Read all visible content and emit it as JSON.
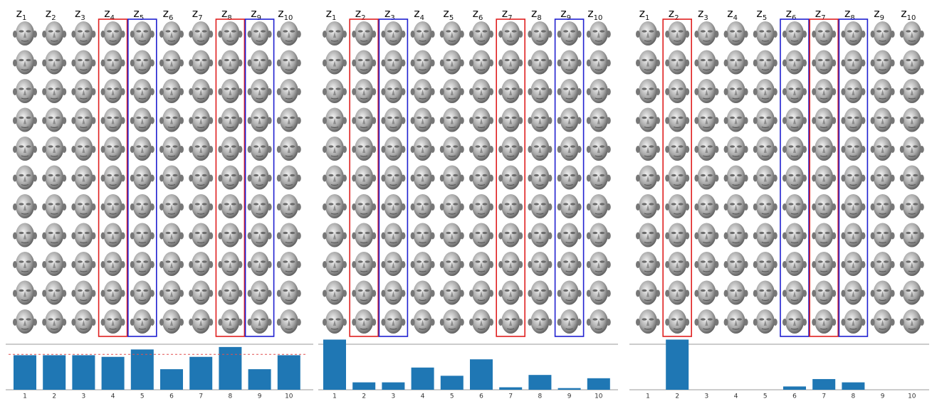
{
  "chart_data": [
    {
      "type": "bar",
      "latent_symbol": "z",
      "latent_indices": [
        "1",
        "2",
        "3",
        "4",
        "5",
        "6",
        "7",
        "8",
        "9",
        "10"
      ],
      "boxes": [
        {
          "column": 4,
          "color": "#e02020"
        },
        {
          "column": 5,
          "color": "#2020d0"
        },
        {
          "column": 8,
          "color": "#e02020"
        },
        {
          "column": 9,
          "color": "#2020d0"
        }
      ],
      "categories": [
        "1",
        "2",
        "3",
        "4",
        "5",
        "6",
        "7",
        "8",
        "9",
        "10"
      ],
      "values": [
        42,
        42,
        42,
        40,
        49,
        25,
        40,
        52,
        25,
        42
      ],
      "color": "#1f77b4",
      "ylim": [
        0,
        64
      ],
      "reference_line": 43,
      "reference_color": "#e05050"
    },
    {
      "type": "bar",
      "latent_symbol": "z",
      "latent_indices": [
        "1",
        "2",
        "3",
        "4",
        "5",
        "6",
        "7",
        "8",
        "9",
        "10"
      ],
      "boxes": [
        {
          "column": 2,
          "color": "#e02020"
        },
        {
          "column": 3,
          "color": "#2020d0"
        },
        {
          "column": 7,
          "color": "#e02020"
        },
        {
          "column": 9,
          "color": "#2020d0"
        }
      ],
      "categories": [
        "1",
        "2",
        "3",
        "4",
        "5",
        "6",
        "7",
        "8",
        "9",
        "10"
      ],
      "values": [
        61,
        9,
        9,
        27,
        17,
        37,
        3,
        18,
        2,
        14
      ],
      "color": "#1f77b4",
      "ylim": [
        0,
        64
      ]
    },
    {
      "type": "bar",
      "latent_symbol": "z",
      "latent_indices": [
        "1",
        "2",
        "3",
        "4",
        "5",
        "6",
        "7",
        "8",
        "9",
        "10"
      ],
      "boxes": [
        {
          "column": 2,
          "color": "#e02020"
        },
        {
          "column": 6,
          "color": "#2020d0"
        },
        {
          "column": 7,
          "color": "#e02020"
        },
        {
          "column": 8,
          "color": "#2020d0"
        }
      ],
      "categories": [
        "1",
        "2",
        "3",
        "4",
        "5",
        "6",
        "7",
        "8",
        "9",
        "10"
      ],
      "values": [
        0,
        61,
        0,
        0,
        0,
        4,
        13,
        9,
        0,
        0
      ],
      "color": "#1f77b4",
      "ylim": [
        0,
        64
      ]
    }
  ]
}
